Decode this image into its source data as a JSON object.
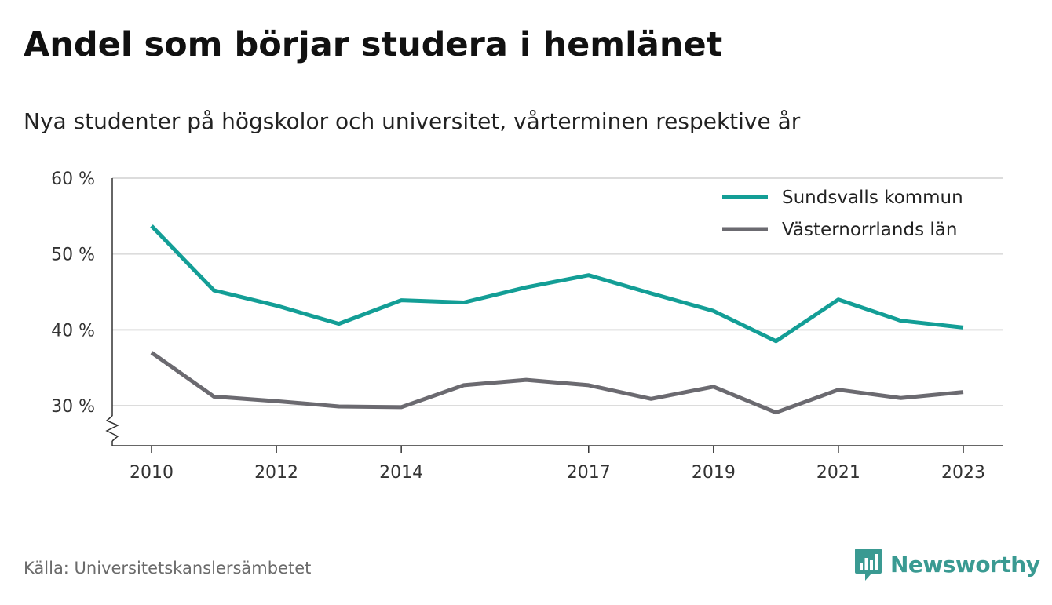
{
  "title": "Andel som börjar studera i hemlänet",
  "subtitle": "Nya studenter på högskolor och universitet, vårterminen respektive år",
  "source": "Källa: Universitetskanslersämbetet",
  "brand": {
    "name": "Newsworthy",
    "icon": "newsworthy-logo-icon",
    "color": "#3a9a92"
  },
  "chart_data": {
    "type": "line",
    "x": [
      2010,
      2011,
      2012,
      2013,
      2014,
      2015,
      2016,
      2017,
      2018,
      2019,
      2020,
      2021,
      2022,
      2023
    ],
    "x_ticks": [
      "2010",
      "2012",
      "2014",
      "2017",
      "2019",
      "2021",
      "2023"
    ],
    "y_ticks": [
      {
        "value": 30,
        "label": "30 %"
      },
      {
        "value": 40,
        "label": "40 %"
      },
      {
        "value": 50,
        "label": "50 %"
      },
      {
        "value": 60,
        "label": "60 %"
      }
    ],
    "ylim": [
      25,
      60
    ],
    "y_axis_break": true,
    "grid": true,
    "legend_position": "top-right",
    "series": [
      {
        "name": "Sundsvalls kommun",
        "color": "#139e96",
        "values": [
          53.7,
          45.2,
          43.2,
          40.8,
          43.9,
          43.6,
          45.6,
          47.2,
          44.8,
          42.5,
          38.5,
          44.0,
          41.2,
          40.3
        ]
      },
      {
        "name": "Västernorrlands län",
        "color": "#6b6a70",
        "values": [
          37.0,
          31.2,
          30.6,
          29.9,
          29.8,
          32.7,
          33.4,
          32.7,
          30.9,
          32.5,
          29.1,
          32.1,
          31.0,
          31.8
        ]
      }
    ]
  }
}
